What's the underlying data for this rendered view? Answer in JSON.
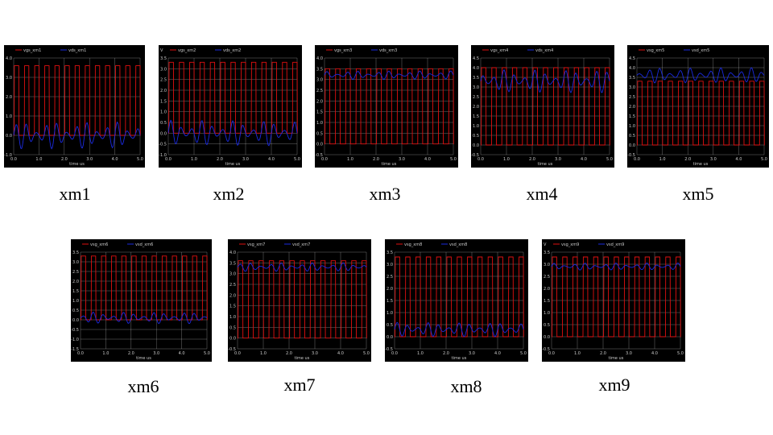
{
  "colors": {
    "plot_bg": "#000000",
    "grid": "#ffffff",
    "axis_text": "#cccccc",
    "gate": "#e01010",
    "drain": "#1a2ae0"
  },
  "chart_data": [
    {
      "type": "line",
      "caption": "xm1",
      "unit_label": "",
      "legend": [
        "vgs_xm1",
        "vds_xm1"
      ],
      "xlabel": "time",
      "xunit": "us",
      "xlim": [
        0,
        5
      ],
      "ylim": [
        -1.0,
        4.0
      ],
      "xticks": [
        "0.0",
        "1.0",
        "2.0",
        "3.0",
        "4.0",
        "5.0"
      ],
      "yticks": [
        "-1.0",
        "0.0",
        "1.0",
        "2.0",
        "3.0",
        "4.0"
      ],
      "series": [
        {
          "name": "vgs_xm1",
          "color": "#e01010",
          "pattern": "pulse",
          "low": 0.0,
          "high": 3.6,
          "period": 0.4,
          "duty": 0.45
        },
        {
          "name": "vds_xm1",
          "color": "#1a2ae0",
          "pattern": "wavy",
          "base": 0.0,
          "amp": 0.7,
          "period": 0.4
        }
      ]
    },
    {
      "type": "line",
      "caption": "xm2",
      "unit_label": "V",
      "legend": [
        "vgs_xm2",
        "vds_xm2"
      ],
      "xlabel": "time",
      "xunit": "us",
      "xlim": [
        0,
        5
      ],
      "ylim": [
        -1.0,
        3.5
      ],
      "xticks": [
        "0.0",
        "1.0",
        "2.0",
        "3.0",
        "4.0",
        "5.0"
      ],
      "yticks": [
        "-1.0",
        "-0.5",
        "0.0",
        "0.5",
        "1.0",
        "1.5",
        "2.0",
        "2.5",
        "3.0",
        "3.5"
      ],
      "series": [
        {
          "name": "vgs_xm2",
          "color": "#e01010",
          "pattern": "pulse",
          "low": 0.0,
          "high": 3.3,
          "period": 0.4,
          "duty": 0.45
        },
        {
          "name": "vds_xm2",
          "color": "#1a2ae0",
          "pattern": "wavy",
          "base": 0.0,
          "amp": 0.6,
          "period": 0.4
        }
      ]
    },
    {
      "type": "line",
      "caption": "xm3",
      "unit_label": "",
      "legend": [
        "vgs_xm3",
        "vds_xm3"
      ],
      "xlabel": "time",
      "xunit": "us",
      "xlim": [
        0,
        5
      ],
      "ylim": [
        -0.5,
        4.0
      ],
      "xticks": [
        "0.0",
        "1.0",
        "2.0",
        "3.0",
        "4.0",
        "5.0"
      ],
      "yticks": [
        "-0.5",
        "0.0",
        "0.5",
        "1.0",
        "1.5",
        "2.0",
        "2.5",
        "3.0",
        "3.5",
        "4.0"
      ],
      "series": [
        {
          "name": "vgs_xm3",
          "color": "#e01010",
          "pattern": "pulse",
          "low": 0.0,
          "high": 3.5,
          "period": 0.4,
          "duty": 0.45
        },
        {
          "name": "vds_xm3",
          "color": "#1a2ae0",
          "pattern": "wavy",
          "base": 3.2,
          "amp": 0.2,
          "period": 0.4
        }
      ]
    },
    {
      "type": "line",
      "caption": "xm4",
      "unit_label": "",
      "legend": [
        "vgs_xm4",
        "vds_xm4"
      ],
      "xlabel": "time",
      "xunit": "us",
      "xlim": [
        0,
        5
      ],
      "ylim": [
        -0.5,
        4.5
      ],
      "xticks": [
        "0.0",
        "1.0",
        "2.0",
        "3.0",
        "4.0",
        "5.0"
      ],
      "yticks": [
        "-0.5",
        "0.0",
        "0.5",
        "1.0",
        "1.5",
        "2.0",
        "2.5",
        "3.0",
        "3.5",
        "4.0",
        "4.5"
      ],
      "series": [
        {
          "name": "vgs_xm4",
          "color": "#e01010",
          "pattern": "pulse",
          "low": 0.0,
          "high": 4.0,
          "period": 0.4,
          "duty": 0.45
        },
        {
          "name": "vds_xm4",
          "color": "#1a2ae0",
          "pattern": "wavy",
          "base": 3.3,
          "amp": 0.6,
          "period": 0.4
        }
      ]
    },
    {
      "type": "line",
      "caption": "xm5",
      "unit_label": "",
      "legend": [
        "vsg_xm5",
        "vsd_xm5"
      ],
      "xlabel": "time",
      "xunit": "us",
      "xlim": [
        0,
        5
      ],
      "ylim": [
        -0.5,
        4.5
      ],
      "xticks": [
        "0.0",
        "1.0",
        "2.0",
        "3.0",
        "4.0",
        "5.0"
      ],
      "yticks": [
        "-0.5",
        "0.0",
        "0.5",
        "1.0",
        "1.5",
        "2.0",
        "2.5",
        "3.0",
        "3.5",
        "4.0",
        "4.5"
      ],
      "series": [
        {
          "name": "vsg_xm5",
          "color": "#e01010",
          "pattern": "pulse",
          "low": 0.0,
          "high": 3.3,
          "period": 0.4,
          "duty": 0.45
        },
        {
          "name": "vsd_xm5",
          "color": "#1a2ae0",
          "pattern": "wavy",
          "base": 3.6,
          "amp": 0.4,
          "period": 0.4
        }
      ]
    },
    {
      "type": "line",
      "caption": "xm6",
      "unit_label": "",
      "legend": [
        "vsg_xm6",
        "vsd_xm6"
      ],
      "xlabel": "time",
      "xunit": "us",
      "xlim": [
        0,
        5
      ],
      "ylim": [
        -1.5,
        3.5
      ],
      "xticks": [
        "0.0",
        "1.0",
        "2.0",
        "3.0",
        "4.0",
        "5.0"
      ],
      "yticks": [
        "-1.5",
        "-1.0",
        "-0.5",
        "0.0",
        "0.5",
        "1.0",
        "1.5",
        "2.0",
        "2.5",
        "3.0",
        "3.5"
      ],
      "series": [
        {
          "name": "vsg_xm6",
          "color": "#e01010",
          "pattern": "pulse",
          "low": 0.0,
          "high": 3.3,
          "period": 0.4,
          "duty": 0.45
        },
        {
          "name": "vsd_xm6",
          "color": "#1a2ae0",
          "pattern": "wavy",
          "base": 0.1,
          "amp": 0.3,
          "period": 0.4
        }
      ]
    },
    {
      "type": "line",
      "caption": "xm7",
      "unit_label": "",
      "legend": [
        "vsg_xm7",
        "vsd_xm7"
      ],
      "xlabel": "time",
      "xunit": "us",
      "xlim": [
        0,
        5
      ],
      "ylim": [
        -0.5,
        4.0
      ],
      "xticks": [
        "0.0",
        "1.0",
        "2.0",
        "3.0",
        "4.0",
        "5.0"
      ],
      "yticks": [
        "-0.5",
        "0.0",
        "0.5",
        "1.0",
        "1.5",
        "2.0",
        "2.5",
        "3.0",
        "3.5",
        "4.0"
      ],
      "series": [
        {
          "name": "vsg_xm7",
          "color": "#e01010",
          "pattern": "pulse",
          "low": 0.0,
          "high": 3.6,
          "period": 0.4,
          "duty": 0.45
        },
        {
          "name": "vsd_xm7",
          "color": "#1a2ae0",
          "pattern": "wavy",
          "base": 3.3,
          "amp": 0.2,
          "period": 0.4
        }
      ]
    },
    {
      "type": "line",
      "caption": "xm8",
      "unit_label": "",
      "legend": [
        "vsg_xm8",
        "vsd_xm8"
      ],
      "xlabel": "time",
      "xunit": "us",
      "xlim": [
        0,
        5
      ],
      "ylim": [
        -0.5,
        3.5
      ],
      "xticks": [
        "0.0",
        "1.0",
        "2.0",
        "3.0",
        "4.0",
        "5.0"
      ],
      "yticks": [
        "-0.5",
        "0.0",
        "0.5",
        "1.0",
        "1.5",
        "2.0",
        "2.5",
        "3.0",
        "3.5"
      ],
      "series": [
        {
          "name": "vsg_xm8",
          "color": "#e01010",
          "pattern": "pulse",
          "low": 0.0,
          "high": 3.3,
          "period": 0.4,
          "duty": 0.45
        },
        {
          "name": "vsd_xm8",
          "color": "#1a2ae0",
          "pattern": "wavy",
          "base": 0.3,
          "amp": 0.3,
          "period": 0.4
        }
      ]
    },
    {
      "type": "line",
      "caption": "xm9",
      "unit_label": "V",
      "legend": [
        "vsg_xm9",
        "vsd_xm9"
      ],
      "xlabel": "time",
      "xunit": "us",
      "xlim": [
        0,
        5
      ],
      "ylim": [
        -0.5,
        3.5
      ],
      "xticks": [
        "0.0",
        "1.0",
        "2.0",
        "3.0",
        "4.0",
        "5.0"
      ],
      "yticks": [
        "-0.5",
        "0.0",
        "0.5",
        "1.0",
        "1.5",
        "2.0",
        "2.5",
        "3.0",
        "3.5"
      ],
      "series": [
        {
          "name": "vsg_xm9",
          "color": "#e01010",
          "pattern": "pulse",
          "low": 0.0,
          "high": 3.3,
          "period": 0.4,
          "duty": 0.45
        },
        {
          "name": "vsd_xm9",
          "color": "#1a2ae0",
          "pattern": "wavy",
          "base": 2.9,
          "amp": 0.15,
          "period": 0.4
        }
      ]
    }
  ]
}
